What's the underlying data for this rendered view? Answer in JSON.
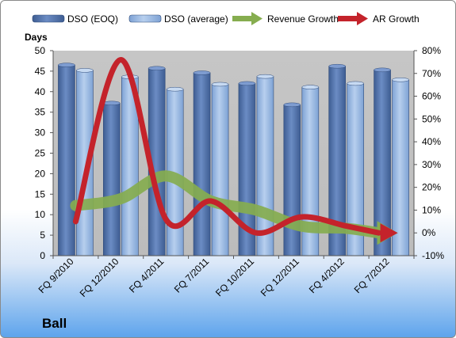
{
  "brand": "Ball",
  "colors": {
    "eoq": "#4f6fa6",
    "average": "#8fb3e0",
    "revenue": "#86ad4f",
    "ar": "#c4232b",
    "plot_bg": "#c0c0c0"
  },
  "chart_data": {
    "type": "bar",
    "categories": [
      "FQ 9/2010",
      "FQ 12/2010",
      "FQ 4/2011",
      "FQ 7/2011",
      "FQ 10/2011",
      "FQ 12/2011",
      "FQ 4/2012",
      "FQ 7/2012"
    ],
    "series": [
      {
        "name": "DSO (EOQ)",
        "axis": "left",
        "values": [
          46.5,
          37.2,
          45.7,
          44.6,
          42.0,
          36.8,
          46.2,
          45.3
        ]
      },
      {
        "name": "DSO (average)",
        "axis": "left",
        "values": [
          45.2,
          43.6,
          40.6,
          41.8,
          43.7,
          41.1,
          42.0,
          42.9
        ]
      },
      {
        "name": "Revenue Growth",
        "type": "line",
        "axis": "right",
        "values": [
          0.12,
          0.15,
          0.25,
          0.14,
          0.1,
          0.03,
          0.02,
          0.0
        ]
      },
      {
        "name": "AR Growth",
        "type": "line",
        "axis": "right",
        "values": [
          0.05,
          0.76,
          0.06,
          0.14,
          0.0,
          0.07,
          0.03,
          0.0
        ]
      }
    ],
    "ylabel": "Days",
    "ylim": [
      0,
      50
    ],
    "yticks": [
      "0",
      "5",
      "10",
      "15",
      "20",
      "25",
      "30",
      "35",
      "40",
      "45",
      "50"
    ],
    "y2lim": [
      -0.1,
      0.8
    ],
    "y2ticks": [
      "-10%",
      "0%",
      "10%",
      "20%",
      "30%",
      "40%",
      "50%",
      "60%",
      "70%",
      "80%"
    ],
    "legend_position": "top",
    "grid": false
  }
}
